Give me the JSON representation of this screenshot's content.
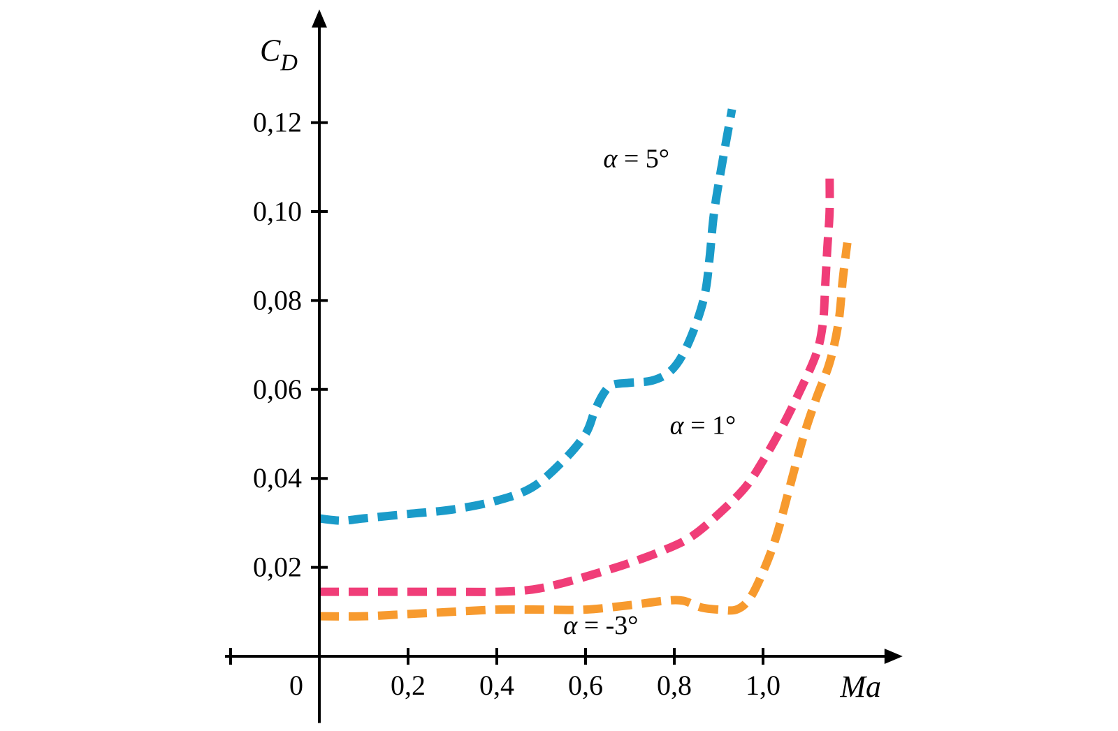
{
  "chart_data": {
    "type": "line",
    "xlabel": "Ma",
    "ylabel": {
      "main": "C",
      "sub": "D"
    },
    "origin_label": "0",
    "xlim": [
      -0.2,
      1.28
    ],
    "ylim": [
      -0.015,
      0.142
    ],
    "x_ticks": [
      {
        "value": -0.2,
        "label": ""
      },
      {
        "value": 0.2,
        "label": "0,2"
      },
      {
        "value": 0.4,
        "label": "0,4"
      },
      {
        "value": 0.6,
        "label": "0,6"
      },
      {
        "value": 0.8,
        "label": "0,8"
      },
      {
        "value": 1.0,
        "label": "1,0"
      }
    ],
    "y_ticks": [
      {
        "value": 0.02,
        "label": "0,02"
      },
      {
        "value": 0.04,
        "label": "0,04"
      },
      {
        "value": 0.06,
        "label": "0,06"
      },
      {
        "value": 0.08,
        "label": "0,08"
      },
      {
        "value": 0.1,
        "label": "0,10"
      },
      {
        "value": 0.12,
        "label": "0,12"
      }
    ],
    "series": [
      {
        "name": "α = 5°",
        "label": {
          "greek": "α",
          "rest": " = 5°"
        },
        "color": "#1a9bc9",
        "label_anchor": {
          "x": 0.64,
          "y": 0.11
        },
        "points": [
          [
            0.0,
            0.031
          ],
          [
            0.05,
            0.0305
          ],
          [
            0.1,
            0.031
          ],
          [
            0.2,
            0.032
          ],
          [
            0.3,
            0.033
          ],
          [
            0.4,
            0.035
          ],
          [
            0.48,
            0.038
          ],
          [
            0.55,
            0.044
          ],
          [
            0.6,
            0.05
          ],
          [
            0.62,
            0.055
          ],
          [
            0.64,
            0.059
          ],
          [
            0.66,
            0.061
          ],
          [
            0.7,
            0.0615
          ],
          [
            0.75,
            0.062
          ],
          [
            0.79,
            0.064
          ],
          [
            0.82,
            0.068
          ],
          [
            0.85,
            0.075
          ],
          [
            0.87,
            0.082
          ],
          [
            0.88,
            0.09
          ],
          [
            0.89,
            0.1
          ],
          [
            0.91,
            0.112
          ],
          [
            0.93,
            0.123
          ]
        ]
      },
      {
        "name": "α = 1°",
        "label": {
          "greek": "α",
          "rest": " = 1°"
        },
        "color": "#f03d78",
        "label_anchor": {
          "x": 0.79,
          "y": 0.05
        },
        "points": [
          [
            0.0,
            0.0145
          ],
          [
            0.1,
            0.0145
          ],
          [
            0.2,
            0.0145
          ],
          [
            0.3,
            0.0145
          ],
          [
            0.4,
            0.0145
          ],
          [
            0.48,
            0.015
          ],
          [
            0.55,
            0.0165
          ],
          [
            0.62,
            0.0185
          ],
          [
            0.7,
            0.021
          ],
          [
            0.78,
            0.024
          ],
          [
            0.84,
            0.027
          ],
          [
            0.9,
            0.032
          ],
          [
            0.96,
            0.038
          ],
          [
            1.0,
            0.044
          ],
          [
            1.04,
            0.051
          ],
          [
            1.08,
            0.059
          ],
          [
            1.12,
            0.068
          ],
          [
            1.135,
            0.075
          ],
          [
            1.14,
            0.083
          ],
          [
            1.145,
            0.092
          ],
          [
            1.15,
            0.1
          ],
          [
            1.15,
            0.109
          ]
        ]
      },
      {
        "name": "α = -3°",
        "label": {
          "greek": "α",
          "rest": " = -3°"
        },
        "color": "#f79a2e",
        "label_anchor": {
          "x": 0.55,
          "y": 0.005
        },
        "points": [
          [
            0.0,
            0.009
          ],
          [
            0.1,
            0.009
          ],
          [
            0.2,
            0.0095
          ],
          [
            0.3,
            0.01
          ],
          [
            0.4,
            0.0105
          ],
          [
            0.5,
            0.0105
          ],
          [
            0.6,
            0.0105
          ],
          [
            0.7,
            0.0115
          ],
          [
            0.78,
            0.0125
          ],
          [
            0.82,
            0.0125
          ],
          [
            0.86,
            0.011
          ],
          [
            0.9,
            0.0105
          ],
          [
            0.94,
            0.0105
          ],
          [
            0.97,
            0.013
          ],
          [
            1.0,
            0.019
          ],
          [
            1.03,
            0.027
          ],
          [
            1.06,
            0.038
          ],
          [
            1.09,
            0.049
          ],
          [
            1.12,
            0.058
          ],
          [
            1.15,
            0.066
          ],
          [
            1.17,
            0.075
          ],
          [
            1.18,
            0.085
          ],
          [
            1.19,
            0.093
          ]
        ]
      }
    ]
  }
}
